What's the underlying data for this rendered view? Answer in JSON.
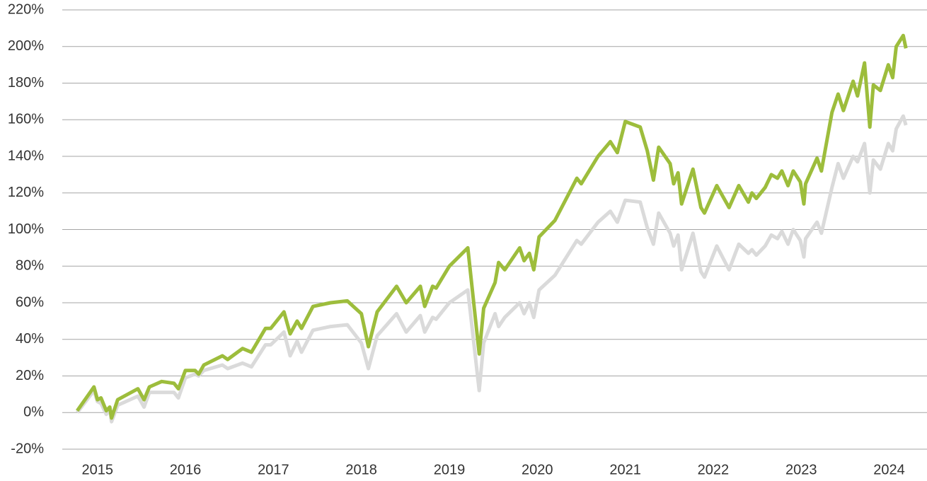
{
  "chart_data": {
    "type": "line",
    "x": [
      2014.77,
      2014.96,
      2015.0,
      2015.04,
      2015.1,
      2015.14,
      2015.16,
      2015.23,
      2015.46,
      2015.53,
      2015.59,
      2015.73,
      2015.87,
      2015.92,
      2016.0,
      2016.11,
      2016.15,
      2016.21,
      2016.42,
      2016.48,
      2016.65,
      2016.75,
      2016.91,
      2016.97,
      2017.12,
      2017.19,
      2017.27,
      2017.32,
      2017.45,
      2017.65,
      2017.84,
      2018.0,
      2018.08,
      2018.18,
      2018.4,
      2018.51,
      2018.67,
      2018.72,
      2018.81,
      2018.85,
      2019.0,
      2019.21,
      2019.34,
      2019.39,
      2019.52,
      2019.56,
      2019.63,
      2019.8,
      2019.85,
      2019.91,
      2019.96,
      2020.02,
      2020.2,
      2020.45,
      2020.5,
      2020.69,
      2020.83,
      2020.91,
      2021.0,
      2021.17,
      2021.25,
      2021.32,
      2021.38,
      2021.51,
      2021.55,
      2021.6,
      2021.64,
      2021.77,
      2021.86,
      2021.9,
      2022.04,
      2022.18,
      2022.29,
      2022.4,
      2022.44,
      2022.49,
      2022.59,
      2022.66,
      2022.73,
      2022.78,
      2022.85,
      2022.91,
      2022.99,
      2023.03,
      2023.05,
      2023.18,
      2023.23,
      2023.35,
      2023.42,
      2023.48,
      2023.59,
      2023.64,
      2023.72,
      2023.78,
      2023.82,
      2023.9,
      2023.99,
      2024.04,
      2024.08,
      2024.16,
      2024.19
    ],
    "series": [
      {
        "color": "#dadada",
        "values": [
          0,
          12,
          6,
          5,
          -1,
          2,
          -5,
          4,
          9,
          3,
          11,
          11,
          11,
          8,
          19,
          21,
          20,
          23,
          26,
          24,
          27,
          25,
          37,
          37,
          44,
          31,
          39,
          33,
          45,
          47,
          48,
          38,
          24,
          42,
          54,
          44,
          53,
          44,
          52,
          51,
          60,
          67,
          12,
          38,
          54,
          47,
          52,
          60,
          54,
          60,
          52,
          67,
          75,
          94,
          92,
          104,
          110,
          104,
          116,
          115,
          101,
          92,
          109,
          98,
          91,
          97,
          78,
          98,
          77,
          74,
          91,
          78,
          92,
          87,
          89,
          86,
          91,
          97,
          95,
          99,
          92,
          100,
          94,
          85,
          95,
          104,
          98,
          123,
          136,
          128,
          140,
          137,
          147,
          120,
          138,
          133,
          147,
          143,
          155,
          162,
          157
        ]
      },
      {
        "color": "#9dbd3c",
        "values": [
          1,
          14,
          7,
          8,
          1,
          3,
          -3,
          7,
          13,
          7,
          14,
          17,
          16,
          13,
          23,
          23,
          21,
          26,
          31,
          29,
          35,
          33,
          46,
          46,
          55,
          43,
          50,
          46,
          58,
          60,
          61,
          54,
          36,
          55,
          69,
          60,
          69,
          58,
          69,
          68,
          80,
          90,
          32,
          57,
          71,
          82,
          78,
          90,
          83,
          87,
          78,
          96,
          105,
          128,
          125,
          140,
          148,
          142,
          159,
          156,
          143,
          127,
          145,
          136,
          125,
          131,
          114,
          133,
          112,
          109,
          124,
          112,
          124,
          115,
          120,
          117,
          123,
          130,
          128,
          132,
          124,
          132,
          126,
          114,
          125,
          139,
          132,
          164,
          174,
          165,
          181,
          173,
          191,
          156,
          179,
          176,
          190,
          183,
          200,
          206,
          199
        ]
      }
    ],
    "xlim": [
      2014.6,
      2024.43
    ],
    "xticks": [
      2015,
      2016,
      2017,
      2018,
      2019,
      2020,
      2021,
      2022,
      2023,
      2024
    ],
    "ylim": [
      -20,
      220
    ],
    "yticks": [
      {
        "value": -20,
        "label": "-20%"
      },
      {
        "value": 0,
        "label": "0%"
      },
      {
        "value": 20,
        "label": "20%"
      },
      {
        "value": 40,
        "label": "40%"
      },
      {
        "value": 60,
        "label": "60%"
      },
      {
        "value": 80,
        "label": "80%"
      },
      {
        "value": 100,
        "label": "100%"
      },
      {
        "value": 120,
        "label": "120%"
      },
      {
        "value": 140,
        "label": "140%"
      },
      {
        "value": 160,
        "label": "160%"
      },
      {
        "value": 180,
        "label": "180%"
      },
      {
        "value": 200,
        "label": "200%"
      },
      {
        "value": 220,
        "label": "220%"
      }
    ],
    "grid": true
  }
}
